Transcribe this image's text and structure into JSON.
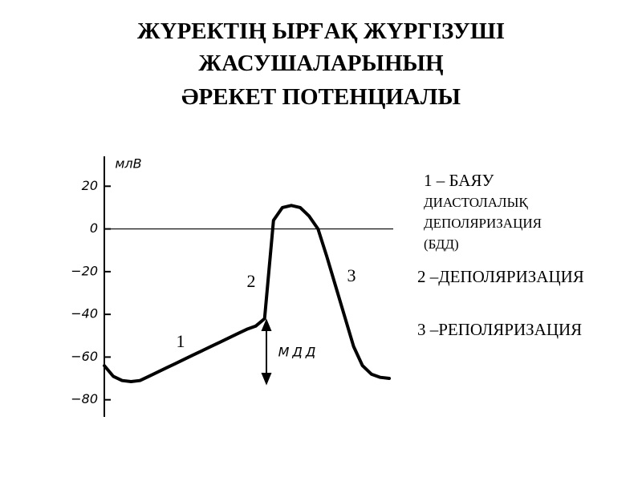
{
  "chart_data": {
    "type": "line",
    "title": [
      "ЖҮРЕКТІҢ  ЫРҒАҚ  ЖҮРГІЗУШІ",
      "ЖАСУШАЛАРЫНЫҢ",
      "ӘРЕКЕТ  ПОТЕНЦИАЛЫ"
    ],
    "ylabel": "млВ",
    "ylim": [
      -88,
      34
    ],
    "yticks": [
      20,
      0,
      {
        "value": -20,
        "label": "−20"
      },
      {
        "value": -40,
        "label": "−40"
      },
      {
        "value": -60,
        "label": "−60"
      },
      {
        "value": -80,
        "label": "−80"
      }
    ],
    "categories": [
      null,
      null,
      null,
      null,
      null,
      null,
      null,
      null,
      null,
      null,
      null,
      null,
      null,
      null,
      null,
      null,
      null,
      null,
      null,
      null,
      null,
      null,
      null,
      null,
      null,
      null,
      null,
      null,
      null,
      null,
      null,
      null,
      null
    ],
    "series": [
      {
        "color": "#000000",
        "values": [
          -64,
          -69,
          -71,
          -71.5,
          -71,
          -69,
          -67,
          -65,
          -63,
          -61,
          -59,
          -57,
          -55,
          -53,
          -51,
          -49,
          -47,
          -45.5,
          -42,
          4,
          10,
          11,
          10,
          6,
          0,
          -13,
          -27,
          -41,
          -55,
          -64,
          -68,
          -69.5,
          -70
        ]
      }
    ],
    "annotations": [
      "1",
      "2",
      "3",
      "МДД"
    ],
    "legend": [
      [
        "1 –  БАЯУ",
        "ДИАСТОЛАЛЫҚ",
        "ДЕПОЛЯРИЗАЦИЯ",
        "(БДД)"
      ],
      [
        "2 –ДЕПОЛЯРИЗАЦИЯ"
      ],
      [
        "3 –РЕПОЛЯРИЗАЦИЯ"
      ]
    ]
  }
}
